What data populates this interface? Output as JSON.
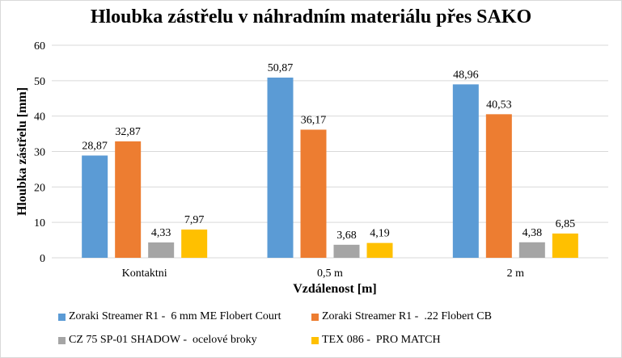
{
  "chart_data": {
    "type": "bar",
    "title": "Hloubka zástřelu v náhradním materiálu přes SAKO",
    "xlabel": "Vzdálenost [m]",
    "ylabel": "Hloubka  zástřelu [mm]",
    "ylim": [
      0,
      60
    ],
    "yticks": [
      "0",
      "10",
      "20",
      "30",
      "40",
      "50",
      "60"
    ],
    "grid": true,
    "legend_position": "bottom",
    "categories": [
      "Kontaktni",
      "0,5 m",
      "2 m"
    ],
    "series": [
      {
        "name": "Zoraki Streamer R1 -  6 mm ME Flobert Court",
        "color": "#5b9bd5",
        "values": [
          28.87,
          50.87,
          48.96
        ],
        "labels": [
          "28,87",
          "50,87",
          "48,96"
        ]
      },
      {
        "name": "Zoraki Streamer R1 -  .22 Flobert CB",
        "color": "#ed7d31",
        "values": [
          32.87,
          36.17,
          40.53
        ],
        "labels": [
          "32,87",
          "36,17",
          "40,53"
        ]
      },
      {
        "name": "CZ 75 SP-01 SHADOW -  ocelové broky",
        "color": "#a5a5a5",
        "values": [
          4.33,
          3.68,
          4.38
        ],
        "labels": [
          "4,33",
          "3,68",
          "4,38"
        ]
      },
      {
        "name": "TEX 086 -  PRO MATCH",
        "color": "#ffc000",
        "values": [
          7.97,
          4.19,
          6.85
        ],
        "labels": [
          "7,97",
          "4,19",
          "6,85"
        ]
      }
    ]
  }
}
